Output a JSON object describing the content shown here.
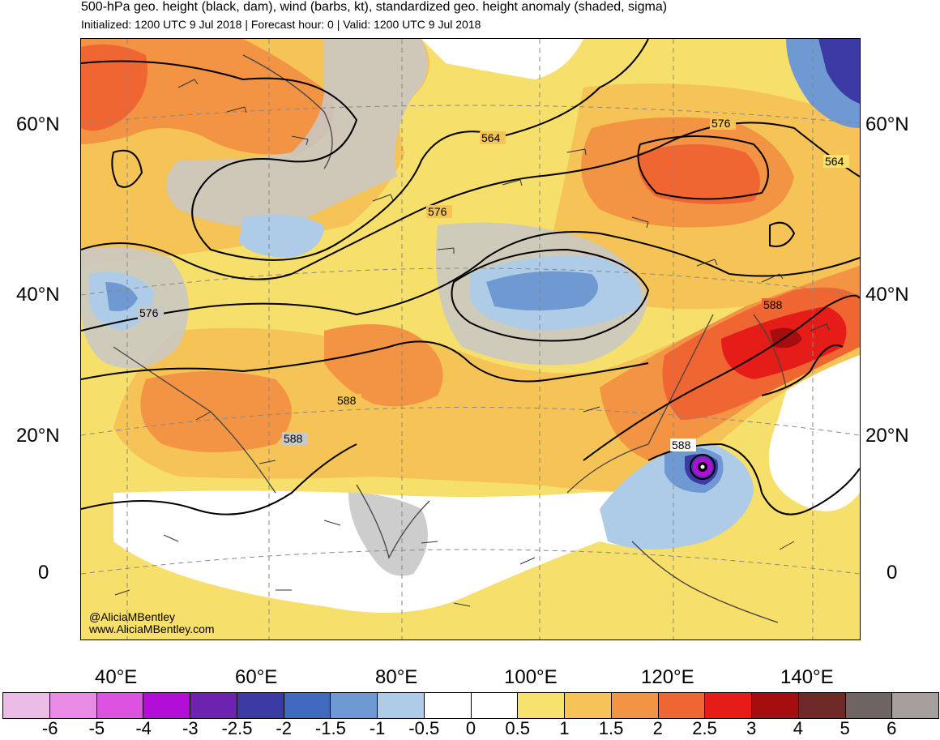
{
  "header": {
    "title": "500-hPa geo. height (black, dam), wind (barbs, kt), standardized geo. height anomaly (shaded, sigma)",
    "subtitle": "Initialized: 1200 UTC 9 Jul 2018 | Forecast hour: 0 | Valid: 1200 UTC 9 Jul 2018"
  },
  "map": {
    "latitude_labels": [
      "60°N",
      "40°N",
      "20°N",
      "0"
    ],
    "longitude_labels": [
      "40°E",
      "60°E",
      "80°E",
      "100°E",
      "120°E",
      "140°E"
    ],
    "contour_labels": [
      "564",
      "576",
      "564",
      "576",
      "576",
      "588",
      "588",
      "588",
      "588"
    ],
    "credit": {
      "handle": "@AliciaMBentley",
      "website": "www.AliciaMBentley.com"
    }
  },
  "colorbar": {
    "colors": [
      "#ebbde6",
      "#e98ae4",
      "#dc53e1",
      "#b30ed8",
      "#6e23b0",
      "#3c3aa4",
      "#3f6ac0",
      "#6f99d2",
      "#aecbe7",
      "#ffffff",
      "#ffffff",
      "#f7e36b",
      "#f5c356",
      "#f29444",
      "#ef6632",
      "#e51c18",
      "#a50d0e",
      "#6e2a27",
      "#6e6462",
      "#a79f9e"
    ],
    "tick_labels": [
      "-6",
      "-5",
      "-4",
      "-3",
      "-2.5",
      "-2",
      "-1.5",
      "-1",
      "-0.5",
      "0",
      "0.5",
      "1",
      "1.5",
      "2",
      "2.5",
      "3",
      "4",
      "5",
      "6"
    ]
  }
}
